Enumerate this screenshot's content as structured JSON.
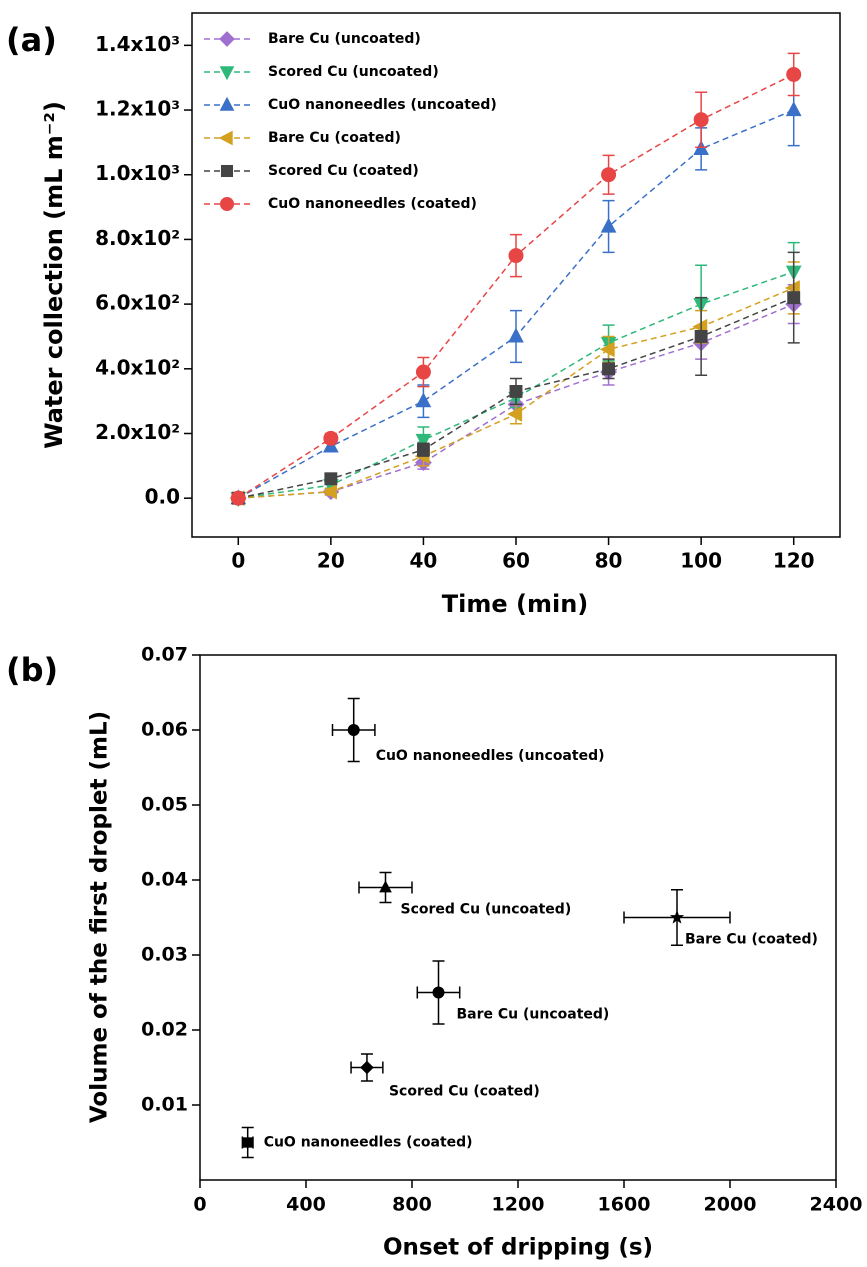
{
  "chart_data": [
    {
      "type": "line",
      "panel_label": "(a)",
      "x_label": "Time (min)",
      "y_label": "Water collection (mL m⁻²)",
      "x": [
        0,
        20,
        40,
        60,
        80,
        100,
        120
      ],
      "xlim": [
        -10,
        130
      ],
      "xticks": [
        0,
        20,
        40,
        60,
        80,
        100,
        120
      ],
      "ylim": [
        -120,
        1500
      ],
      "yticks": [
        {
          "value": 0,
          "label": "0.0"
        },
        {
          "value": 200,
          "label": "2.0x10²"
        },
        {
          "value": 400,
          "label": "4.0x10²"
        },
        {
          "value": 600,
          "label": "6.0x10²"
        },
        {
          "value": 800,
          "label": "8.0x10²"
        },
        {
          "value": 1000,
          "label": "1.0x10³"
        },
        {
          "value": 1200,
          "label": "1.2x10³"
        },
        {
          "value": 1400,
          "label": "1.4x10³"
        }
      ],
      "legend": "upper left",
      "series": [
        {
          "name": "Bare Cu (uncoated)",
          "color": "#a070d0",
          "marker": "diamond",
          "values": [
            0,
            20,
            110,
            290,
            390,
            480,
            600
          ],
          "errors": [
            0,
            10,
            20,
            30,
            40,
            50,
            60
          ]
        },
        {
          "name": "Scored Cu (uncoated)",
          "color": "#2eb87a",
          "marker": "triangle-down",
          "values": [
            0,
            40,
            180,
            310,
            480,
            600,
            700
          ],
          "errors": [
            0,
            10,
            40,
            30,
            55,
            120,
            90
          ]
        },
        {
          "name": "CuO nanoneedles (uncoated)",
          "color": "#3a70c8",
          "marker": "triangle",
          "values": [
            0,
            160,
            300,
            500,
            840,
            1080,
            1200
          ],
          "errors": [
            0,
            15,
            50,
            80,
            80,
            65,
            110
          ]
        },
        {
          "name": "Bare Cu (coated)",
          "color": "#d4a020",
          "marker": "triangle-left",
          "values": [
            0,
            20,
            130,
            260,
            460,
            530,
            650
          ],
          "errors": [
            0,
            10,
            30,
            30,
            40,
            50,
            80
          ]
        },
        {
          "name": "Scored Cu (coated)",
          "color": "#444444",
          "marker": "square",
          "values": [
            0,
            60,
            150,
            330,
            400,
            500,
            620
          ],
          "errors": [
            0,
            10,
            20,
            40,
            30,
            120,
            140
          ]
        },
        {
          "name": "CuO nanoneedles (coated)",
          "color": "#e84545",
          "marker": "circle",
          "values": [
            0,
            185,
            390,
            750,
            1000,
            1170,
            1310
          ],
          "errors": [
            0,
            15,
            45,
            65,
            60,
            85,
            65
          ]
        }
      ]
    },
    {
      "type": "scatter",
      "panel_label": "(b)",
      "x_label": "Onset of dripping (s)",
      "y_label": "Volume of the first droplet (mL)",
      "xlim": [
        0,
        2400
      ],
      "xticks": [
        0,
        400,
        800,
        1200,
        1600,
        2000,
        2400
      ],
      "ylim": [
        0,
        0.07
      ],
      "yticks": [
        0.01,
        0.02,
        0.03,
        0.04,
        0.05,
        0.06,
        0.07
      ],
      "color": "#000000",
      "points": [
        {
          "label": "CuO nanoneedles (uncoated)",
          "marker": "circle",
          "x": 580,
          "y": 0.06,
          "xerr": 80,
          "yerr": 0.0042
        },
        {
          "label": "Scored Cu (uncoated)",
          "marker": "triangle",
          "x": 700,
          "y": 0.039,
          "xerr": 100,
          "yerr": 0.002
        },
        {
          "label": "Bare Cu (coated)",
          "marker": "star",
          "x": 1800,
          "y": 0.035,
          "xerr": 200,
          "yerr": 0.0037
        },
        {
          "label": "Bare Cu (uncoated)",
          "marker": "circle",
          "x": 900,
          "y": 0.025,
          "xerr": 80,
          "yerr": 0.0042
        },
        {
          "label": "Scored Cu (coated)",
          "marker": "diamond",
          "x": 630,
          "y": 0.015,
          "xerr": 60,
          "yerr": 0.0018
        },
        {
          "label": "CuO nanoneedles (coated)",
          "marker": "square",
          "x": 180,
          "y": 0.005,
          "xerr": 20,
          "yerr": 0.002
        }
      ]
    }
  ]
}
